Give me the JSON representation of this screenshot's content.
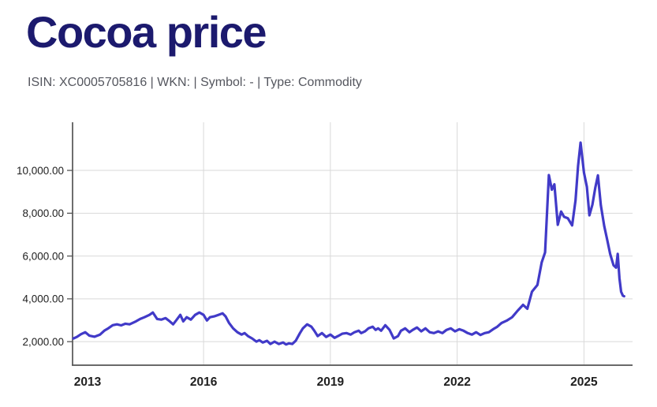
{
  "header": {
    "title": "Cocoa price",
    "meta": "ISIN: XC0005705816 | WKN: | Symbol: - | Type: Commodity"
  },
  "colors": {
    "title": "#1c1a6e",
    "meta": "#54565e",
    "line": "#413ac8",
    "grid": "#d9d9d9",
    "axis": "#555555",
    "tick_label": "#1f1f1f"
  },
  "chart_data": {
    "type": "line",
    "x_ticks": [
      2013,
      2016,
      2019,
      2022,
      2025
    ],
    "y_ticks": [
      2000,
      4000,
      6000,
      8000,
      10000
    ],
    "y_tick_labels": [
      "2,000.00",
      "4,000.00",
      "6,000.00",
      "8,000.00",
      "10,000.00"
    ],
    "xlim": [
      2012.9,
      2026.15
    ],
    "ylim": [
      900,
      12250
    ],
    "grid": true,
    "legend": false,
    "series": [
      {
        "name": "Cocoa price",
        "x": [
          2012.92,
          2013.0,
          2013.1,
          2013.2,
          2013.3,
          2013.42,
          2013.55,
          2013.65,
          2013.75,
          2013.85,
          2013.95,
          2014.05,
          2014.15,
          2014.25,
          2014.4,
          2014.5,
          2014.6,
          2014.72,
          2014.8,
          2014.9,
          2015.0,
          2015.1,
          2015.2,
          2015.28,
          2015.35,
          2015.45,
          2015.52,
          2015.6,
          2015.7,
          2015.8,
          2015.9,
          2016.0,
          2016.08,
          2016.15,
          2016.25,
          2016.35,
          2016.45,
          2016.52,
          2016.6,
          2016.7,
          2016.8,
          2016.9,
          2016.97,
          2017.05,
          2017.15,
          2017.25,
          2017.32,
          2017.4,
          2017.5,
          2017.58,
          2017.68,
          2017.78,
          2017.88,
          2017.95,
          2018.02,
          2018.1,
          2018.18,
          2018.28,
          2018.35,
          2018.45,
          2018.55,
          2018.62,
          2018.7,
          2018.8,
          2018.9,
          2019.0,
          2019.1,
          2019.18,
          2019.28,
          2019.38,
          2019.48,
          2019.57,
          2019.67,
          2019.73,
          2019.82,
          2019.9,
          2020.0,
          2020.07,
          2020.13,
          2020.2,
          2020.3,
          2020.4,
          2020.5,
          2020.6,
          2020.67,
          2020.77,
          2020.87,
          2020.95,
          2021.05,
          2021.15,
          2021.25,
          2021.35,
          2021.45,
          2021.55,
          2021.65,
          2021.75,
          2021.85,
          2021.95,
          2022.05,
          2022.15,
          2022.25,
          2022.35,
          2022.45,
          2022.55,
          2022.65,
          2022.75,
          2022.85,
          2022.95,
          2023.05,
          2023.17,
          2023.3,
          2023.42,
          2023.56,
          2023.66,
          2023.77,
          2023.9,
          2024.0,
          2024.08,
          2024.17,
          2024.24,
          2024.3,
          2024.38,
          2024.46,
          2024.53,
          2024.62,
          2024.72,
          2024.8,
          2024.86,
          2024.92,
          2025.0,
          2025.07,
          2025.13,
          2025.2,
          2025.27,
          2025.33,
          2025.4,
          2025.48,
          2025.55,
          2025.62,
          2025.7,
          2025.76,
          2025.8,
          2025.84,
          2025.88,
          2025.92,
          2025.95
        ],
        "values": [
          2150,
          2220,
          2350,
          2440,
          2280,
          2230,
          2330,
          2510,
          2630,
          2770,
          2810,
          2760,
          2840,
          2810,
          2950,
          3060,
          3140,
          3250,
          3360,
          3060,
          3030,
          3100,
          2950,
          2810,
          2990,
          3250,
          2950,
          3140,
          3030,
          3250,
          3360,
          3250,
          2990,
          3140,
          3180,
          3250,
          3320,
          3180,
          2880,
          2620,
          2440,
          2330,
          2400,
          2260,
          2150,
          2000,
          2070,
          1960,
          2040,
          1890,
          2000,
          1890,
          1960,
          1870,
          1920,
          1890,
          2040,
          2400,
          2620,
          2810,
          2700,
          2510,
          2260,
          2400,
          2220,
          2330,
          2180,
          2260,
          2370,
          2400,
          2330,
          2440,
          2510,
          2400,
          2480,
          2620,
          2700,
          2550,
          2620,
          2510,
          2770,
          2550,
          2150,
          2260,
          2510,
          2620,
          2440,
          2550,
          2660,
          2480,
          2620,
          2440,
          2400,
          2480,
          2400,
          2550,
          2620,
          2480,
          2580,
          2510,
          2400,
          2330,
          2440,
          2310,
          2400,
          2440,
          2580,
          2700,
          2870,
          2980,
          3140,
          3420,
          3720,
          3540,
          4340,
          4650,
          5700,
          6170,
          9780,
          9100,
          9350,
          7460,
          8080,
          7830,
          7760,
          7430,
          8600,
          10200,
          11300,
          9900,
          9230,
          7900,
          8400,
          9200,
          9770,
          8370,
          7400,
          6770,
          6100,
          5570,
          5460,
          6100,
          4960,
          4330,
          4150,
          4120
        ]
      }
    ]
  }
}
